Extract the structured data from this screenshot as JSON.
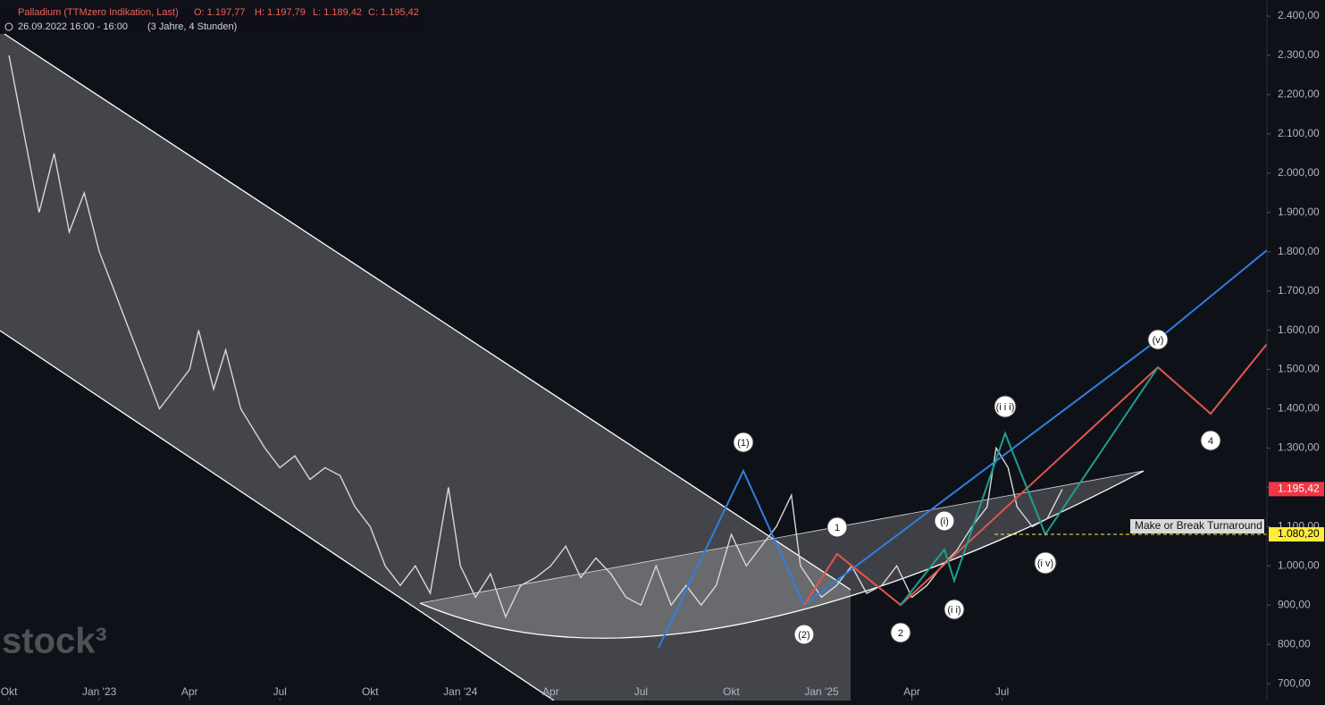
{
  "chart_data": {
    "type": "line",
    "series": [
      {
        "name": "Palladium (TTMzero Indikation, Last)",
        "color": "#d6d8de",
        "x": [
          0,
          0.5,
          1,
          1.5,
          2,
          2.5,
          3,
          3.5,
          4,
          4.5,
          5,
          5.5,
          6,
          6.3,
          6.8,
          7.2,
          7.7,
          8.5,
          9,
          9.5,
          10,
          10.5,
          11,
          11.5,
          12,
          12.5,
          13,
          13.5,
          14,
          14.6,
          15,
          15.5,
          16,
          16.5,
          17,
          17.5,
          18,
          18.5,
          19,
          19.5,
          20,
          20.5,
          21,
          21.5,
          22,
          22.5,
          23,
          23.5,
          24,
          24.5,
          25,
          25.5,
          26,
          26.3,
          27,
          27.5,
          28,
          28.5,
          29,
          29.5,
          30,
          30.5,
          31,
          31.5,
          32,
          32.5,
          32.8,
          33.2,
          33.5,
          34,
          34.5,
          35
        ],
        "values": [
          2300,
          2100,
          1900,
          2050,
          1850,
          1950,
          1800,
          1700,
          1600,
          1500,
          1400,
          1450,
          1500,
          1600,
          1450,
          1550,
          1400,
          1300,
          1250,
          1280,
          1220,
          1250,
          1230,
          1150,
          1100,
          1000,
          950,
          1000,
          930,
          1200,
          1000,
          920,
          980,
          870,
          950,
          970,
          1000,
          1050,
          970,
          1020,
          980,
          920,
          900,
          1000,
          900,
          950,
          900,
          950,
          1080,
          1000,
          1050,
          1100,
          1180,
          1000,
          920,
          950,
          1000,
          930,
          950,
          1000,
          920,
          950,
          1000,
          1040,
          1100,
          1150,
          1300,
          1250,
          1150,
          1100,
          1120,
          1195.42
        ]
      }
    ],
    "xlim": [
      -0.3,
      41.8
    ],
    "xticks": [
      {
        "value": 0,
        "label": "Okt"
      },
      {
        "value": 3,
        "label": "Jan '23"
      },
      {
        "value": 6,
        "label": "Apr"
      },
      {
        "value": 9,
        "label": "Jul"
      },
      {
        "value": 12,
        "label": "Okt"
      },
      {
        "value": 15,
        "label": "Jan '24"
      },
      {
        "value": 18,
        "label": "Apr"
      },
      {
        "value": 21,
        "label": "Jul"
      },
      {
        "value": 24,
        "label": "Okt"
      },
      {
        "value": 27,
        "label": "Jan '25"
      },
      {
        "value": 30,
        "label": "Apr"
      },
      {
        "value": 33,
        "label": "Jul"
      }
    ],
    "ylim": [
      657,
      2441
    ],
    "yticks": [
      {
        "value": 700,
        "label": "700,00"
      },
      {
        "value": 800,
        "label": "800,00"
      },
      {
        "value": 900,
        "label": "900,00"
      },
      {
        "value": 1000,
        "label": "1.000,00"
      },
      {
        "value": 1100,
        "label": "1.100,00"
      },
      {
        "value": 1200,
        "label": "1.200,00"
      },
      {
        "value": 1300,
        "label": "1.300,00"
      },
      {
        "value": 1400,
        "label": "1.400,00"
      },
      {
        "value": 1500,
        "label": "1.500,00"
      },
      {
        "value": 1600,
        "label": "1.600,00"
      },
      {
        "value": 1700,
        "label": "1.700,00"
      },
      {
        "value": 1800,
        "label": "1.800,00"
      },
      {
        "value": 1900,
        "label": "1.900,00"
      },
      {
        "value": 2000,
        "label": "2.000,00"
      },
      {
        "value": 2100,
        "label": "2.100,00"
      },
      {
        "value": 2200,
        "label": "2.200,00"
      },
      {
        "value": 2300,
        "label": "2.300,00"
      },
      {
        "value": 2400,
        "label": "2.400,00"
      }
    ],
    "markers": [
      {
        "value": 1195.42,
        "label": "1.195,42",
        "color": "#f23645"
      },
      {
        "value": 1080.2,
        "label": "1.080,20",
        "color": "#ffeb3b"
      }
    ],
    "header": {
      "open": "O: 1.197,77",
      "high": "H: 1.197,79",
      "low": "L: 1.189,42",
      "close": "C: 1.195,42",
      "date": "26.09.2022 16:00 - 16:00",
      "span": "(3 Jahre, 4 Stunden)"
    },
    "annotations": {
      "waves": [
        "(1)",
        "(2)",
        "1",
        "2",
        "(i)",
        "(i i)",
        "(i i i)",
        "(i v)",
        "(v)",
        "4"
      ],
      "note": "Make or Break Turnaround"
    },
    "watermark": "stock³"
  }
}
